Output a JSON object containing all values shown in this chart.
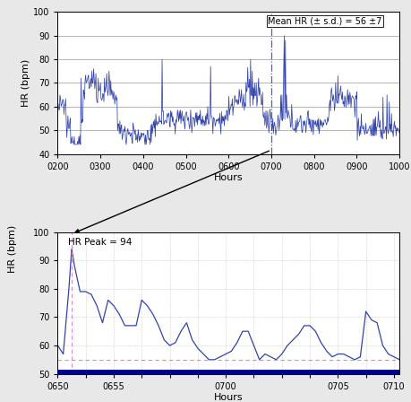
{
  "top_chart": {
    "annotation": "Mean HR (± s.d.) = 56 ±7",
    "xlabel": "Hours",
    "ylabel": "HR (bpm)",
    "ylim": [
      40,
      100
    ],
    "yticks": [
      40,
      50,
      60,
      70,
      80,
      90,
      100
    ],
    "xtick_vals": [
      200,
      300,
      400,
      500,
      600,
      700,
      800,
      900,
      1000
    ],
    "xtick_labels": [
      "0200",
      "0300",
      "0400",
      "0500",
      "0600",
      "0700",
      "0800",
      "0900",
      "1000"
    ],
    "line_color": "#3344aa",
    "vline_x": 700,
    "vline_color": "#3344aa"
  },
  "bottom_chart": {
    "annotation": "HR Peak = 94",
    "xlabel": "Hours",
    "ylim": [
      50,
      100
    ],
    "yticks": [
      50,
      60,
      70,
      80,
      90,
      100
    ],
    "xtick_vals": [
      650,
      655,
      660,
      665,
      670,
      675,
      680,
      685,
      690,
      695,
      700,
      705,
      710
    ],
    "xtick_labels": [
      "0650",
      "",
      "0655",
      "",
      "",
      "",
      "0700",
      "",
      "",
      "",
      "0705",
      "",
      "0710"
    ],
    "line_color": "#3344aa",
    "hline_y": 55,
    "hline_color": "#dd88cc",
    "vline_peak_x": 652.5,
    "vline_peak_color": "#dd88cc",
    "bottom_bar_color": "#000088",
    "data_x": [
      650,
      651,
      652,
      652.5,
      653,
      654,
      655,
      656,
      657,
      658,
      659,
      660,
      661,
      662,
      663,
      664,
      665,
      666,
      667,
      668,
      669,
      670,
      671,
      672,
      673,
      674,
      675,
      676,
      677,
      678,
      679,
      680,
      681,
      682,
      683,
      684,
      685,
      686,
      687,
      688,
      689,
      690,
      691,
      692,
      693,
      694,
      695,
      696,
      697,
      698,
      699,
      700,
      701,
      702,
      703,
      704,
      705,
      706,
      707,
      708,
      709,
      710,
      711
    ],
    "data_y": [
      60,
      57,
      80,
      94,
      88,
      79,
      79,
      78,
      74,
      68,
      76,
      74,
      71,
      67,
      67,
      67,
      76,
      74,
      71,
      67,
      62,
      60,
      61,
      65,
      68,
      62,
      59,
      57,
      55,
      55,
      56,
      57,
      58,
      61,
      65,
      65,
      60,
      55,
      57,
      56,
      55,
      57,
      60,
      62,
      64,
      67,
      67,
      65,
      61,
      58,
      56,
      57,
      57,
      56,
      55,
      56,
      72,
      69,
      68,
      60,
      57,
      56,
      55
    ]
  },
  "arrow_color": "#000000",
  "bg_color": "#e8e8e8",
  "plot_bg": "#ffffff"
}
